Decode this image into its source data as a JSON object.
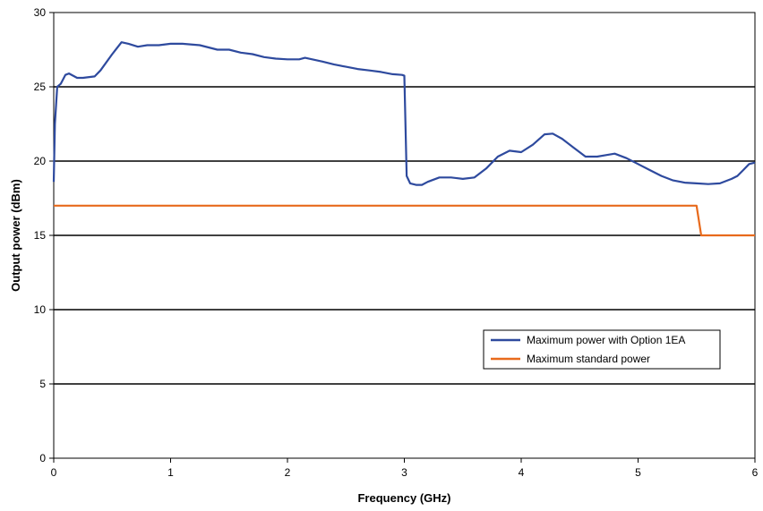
{
  "chart_data": {
    "type": "line",
    "title": "",
    "xlabel": "Frequency (GHz)",
    "ylabel": "Output power (dBm)",
    "xlim": [
      0,
      6
    ],
    "ylim": [
      0,
      30
    ],
    "xticks": [
      "0",
      "1",
      "2",
      "3",
      "4",
      "5",
      "6"
    ],
    "yticks": [
      "0",
      "5",
      "10",
      "15",
      "20",
      "25",
      "30"
    ],
    "grid": "horizontal",
    "legend_position": "lower-right",
    "series": [
      {
        "name": "Maximum power with Option 1EA",
        "color": "#2e4a9e",
        "points": [
          [
            0.0,
            18.6
          ],
          [
            0.01,
            22.5
          ],
          [
            0.03,
            25.0
          ],
          [
            0.06,
            25.2
          ],
          [
            0.1,
            25.8
          ],
          [
            0.13,
            25.9
          ],
          [
            0.2,
            25.6
          ],
          [
            0.25,
            25.6
          ],
          [
            0.35,
            25.7
          ],
          [
            0.4,
            26.1
          ],
          [
            0.5,
            27.2
          ],
          [
            0.58,
            28.0
          ],
          [
            0.64,
            27.9
          ],
          [
            0.72,
            27.7
          ],
          [
            0.8,
            27.8
          ],
          [
            0.9,
            27.8
          ],
          [
            1.0,
            27.9
          ],
          [
            1.1,
            27.9
          ],
          [
            1.25,
            27.8
          ],
          [
            1.4,
            27.5
          ],
          [
            1.5,
            27.5
          ],
          [
            1.6,
            27.3
          ],
          [
            1.7,
            27.2
          ],
          [
            1.8,
            27.0
          ],
          [
            1.9,
            26.9
          ],
          [
            2.0,
            26.85
          ],
          [
            2.1,
            26.85
          ],
          [
            2.15,
            26.95
          ],
          [
            2.3,
            26.7
          ],
          [
            2.4,
            26.5
          ],
          [
            2.5,
            26.35
          ],
          [
            2.6,
            26.2
          ],
          [
            2.7,
            26.1
          ],
          [
            2.8,
            26.0
          ],
          [
            2.9,
            25.85
          ],
          [
            2.98,
            25.8
          ],
          [
            3.0,
            25.75
          ],
          [
            3.02,
            19.0
          ],
          [
            3.05,
            18.5
          ],
          [
            3.1,
            18.4
          ],
          [
            3.15,
            18.4
          ],
          [
            3.2,
            18.6
          ],
          [
            3.3,
            18.9
          ],
          [
            3.4,
            18.9
          ],
          [
            3.5,
            18.8
          ],
          [
            3.6,
            18.9
          ],
          [
            3.7,
            19.5
          ],
          [
            3.8,
            20.3
          ],
          [
            3.9,
            20.7
          ],
          [
            4.0,
            20.6
          ],
          [
            4.1,
            21.1
          ],
          [
            4.2,
            21.8
          ],
          [
            4.27,
            21.85
          ],
          [
            4.35,
            21.5
          ],
          [
            4.45,
            20.9
          ],
          [
            4.55,
            20.3
          ],
          [
            4.65,
            20.3
          ],
          [
            4.72,
            20.4
          ],
          [
            4.8,
            20.5
          ],
          [
            4.9,
            20.2
          ],
          [
            5.0,
            19.8
          ],
          [
            5.1,
            19.4
          ],
          [
            5.2,
            19.0
          ],
          [
            5.3,
            18.7
          ],
          [
            5.4,
            18.55
          ],
          [
            5.5,
            18.5
          ],
          [
            5.6,
            18.45
          ],
          [
            5.7,
            18.5
          ],
          [
            5.8,
            18.8
          ],
          [
            5.85,
            19.0
          ],
          [
            5.9,
            19.4
          ],
          [
            5.95,
            19.8
          ],
          [
            6.0,
            19.9
          ]
        ]
      },
      {
        "name": "Maximum standard power",
        "color": "#e86a1c",
        "points": [
          [
            0.0,
            17.0
          ],
          [
            5.5,
            17.0
          ],
          [
            5.54,
            15.0
          ],
          [
            6.0,
            15.0
          ]
        ]
      }
    ]
  }
}
